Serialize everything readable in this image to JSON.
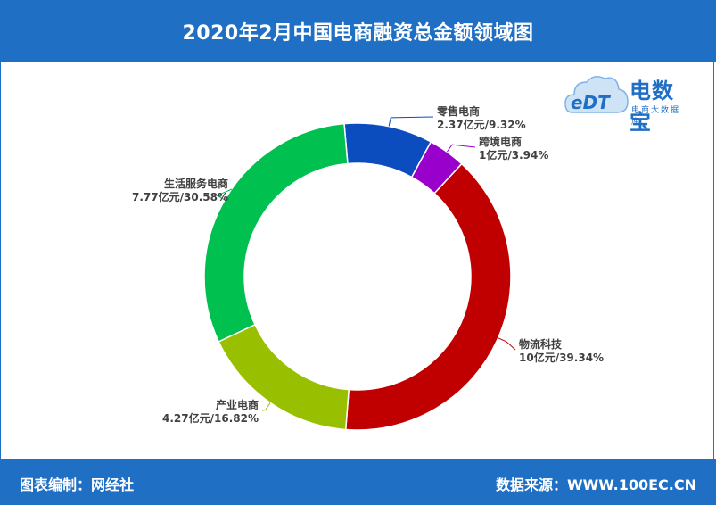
{
  "header": {
    "title": "2020年2月中国电商融资总金额领域图"
  },
  "footer": {
    "left": "图表编制：网经社",
    "right": "数据来源：WWW.100EC.CN"
  },
  "logo": {
    "mark": "eDT",
    "brand": "电数宝",
    "subtitle": "电商大数据库"
  },
  "chart_data": {
    "type": "pie",
    "style": "donut",
    "title": "2020年2月中国电商融资总金额领域图",
    "unit": "亿元",
    "series": [
      {
        "name": "零售电商",
        "value": 2.37,
        "percent": 9.32,
        "label": "2.37亿元/9.32%",
        "color": "#0B4DBF"
      },
      {
        "name": "跨境电商",
        "value": 1,
        "percent": 3.94,
        "label": "1亿元/3.94%",
        "color": "#9900CC"
      },
      {
        "name": "物流科技",
        "value": 10,
        "percent": 39.34,
        "label": "10亿元/39.34%",
        "color": "#C00000"
      },
      {
        "name": "产业电商",
        "value": 4.27,
        "percent": 16.82,
        "label": "4.27亿元/16.82%",
        "color": "#99C000"
      },
      {
        "name": "生活服务电商",
        "value": 7.77,
        "percent": 30.58,
        "label": "7.77亿元/30.58%",
        "color": "#00C050"
      }
    ]
  }
}
